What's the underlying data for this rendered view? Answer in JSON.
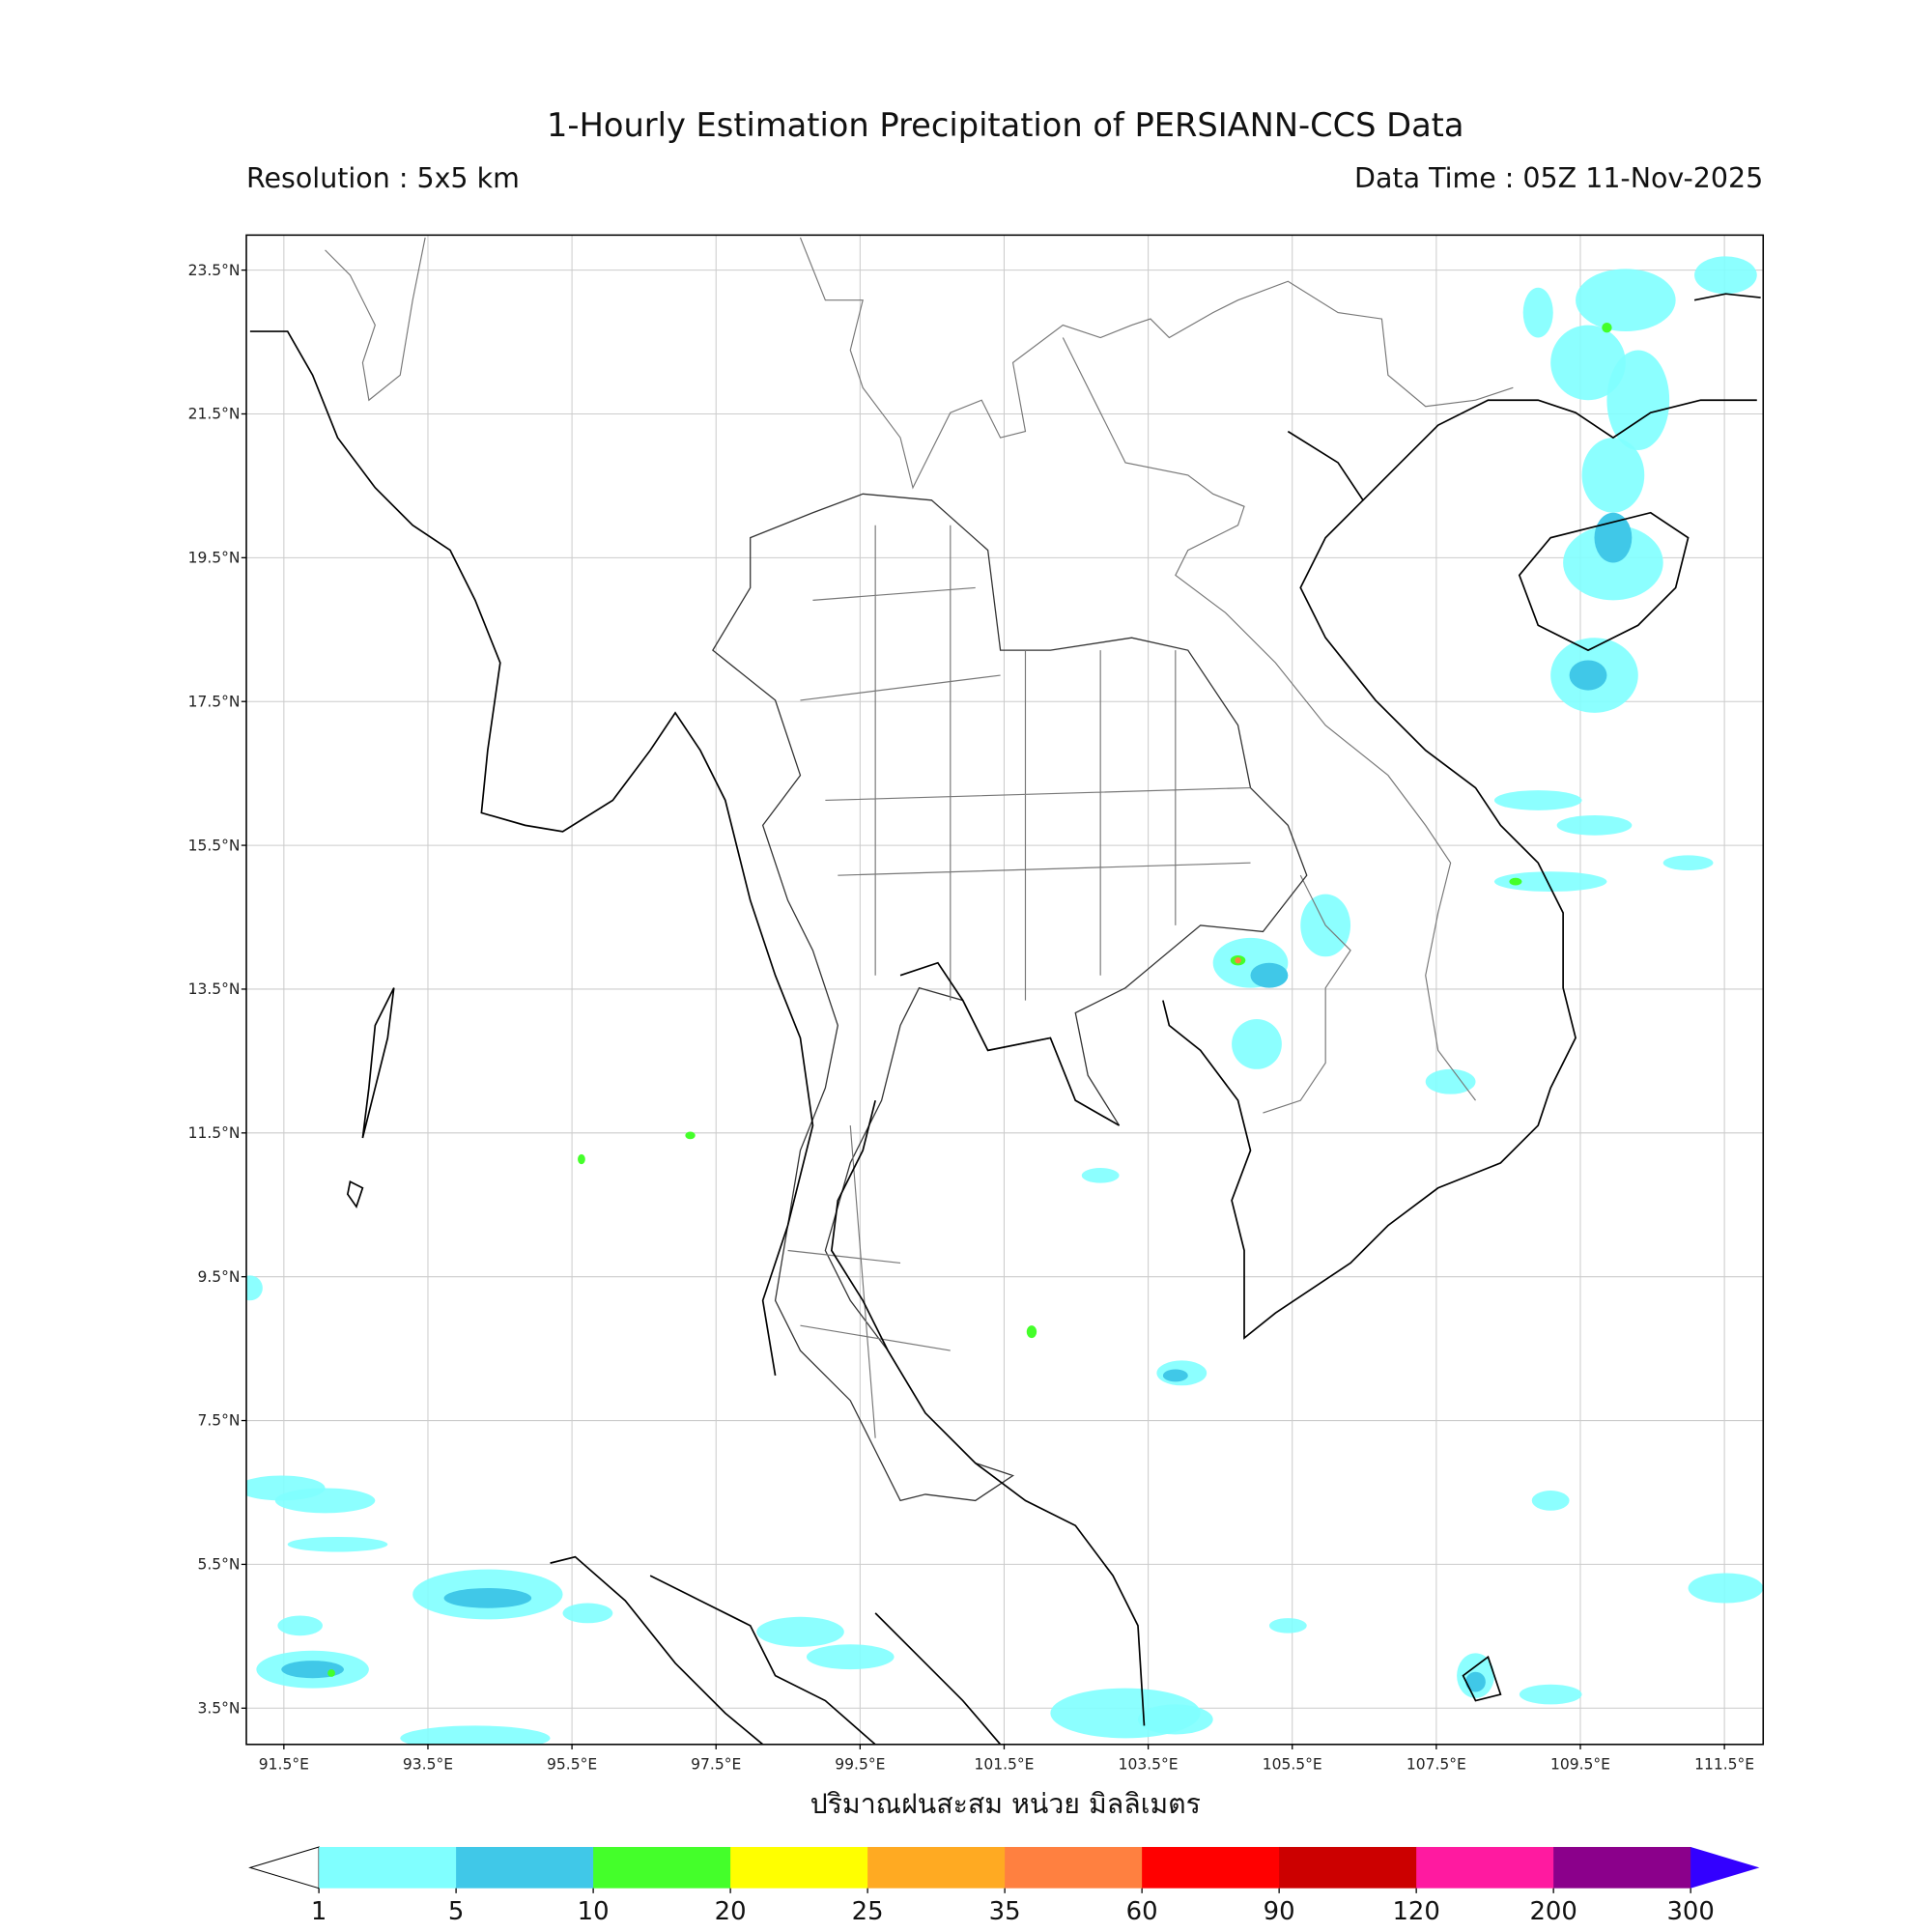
{
  "title": "1-Hourly Estimation Precipitation of PERSIANN-CCS Data",
  "resolution": "Resolution : 5x5 km",
  "data_time": "Data Time : 05Z 11-Nov-2025",
  "map": {
    "lat_labels": [
      "23.5°N",
      "21.5°N",
      "19.5°N",
      "17.5°N",
      "15.5°N",
      "13.5°N",
      "11.5°N",
      "9.5°N",
      "7.5°N",
      "5.5°N",
      "3.5°N"
    ],
    "lon_labels": [
      "91.5°E",
      "93.5°E",
      "95.5°E",
      "97.5°E",
      "99.5°E",
      "101.5°E",
      "103.5°E",
      "105.5°E",
      "107.5°E",
      "109.5°E",
      "111.5°E"
    ],
    "xlabel": "ปริมาณฝนสะสม หน่วย มิลลิเมตร",
    "grid": true
  },
  "colorbar": {
    "ticks": [
      1,
      5,
      10,
      20,
      25,
      35,
      60,
      90,
      120,
      200,
      300
    ],
    "colors": [
      "#80ffff",
      "#40c8e8",
      "#44ff2a",
      "#ffff00",
      "#ffaa22",
      "#ff8040",
      "#ff0000",
      "#cc0000",
      "#ff1aa0",
      "#8b008b"
    ],
    "under_color": "#ffffff",
    "over_color": "#3300ff"
  }
}
